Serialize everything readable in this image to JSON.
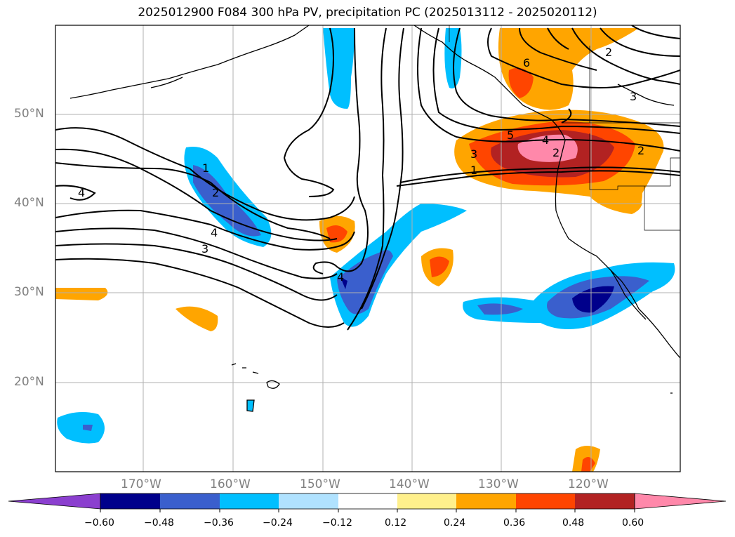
{
  "title": "2025012900 F084 300 hPa PV, precipitation PC (2025013112 - 2025020112)",
  "latitude_labels": [
    "50°N",
    "40°N",
    "30°N",
    "20°N"
  ],
  "longitude_labels": [
    "170°W",
    "160°W",
    "150°W",
    "140°W",
    "130°W",
    "120°W"
  ],
  "colorbar": {
    "colors": [
      "#8b3fcf",
      "#00008b",
      "#3a5fcd",
      "#00bfff",
      "#b0e2ff",
      "#ffffff",
      "#fff08c",
      "#ffa500",
      "#ff4500",
      "#b22222",
      "#ff88aa"
    ],
    "tick_labels": [
      "−0.60",
      "−0.48",
      "−0.36",
      "−0.24",
      "−0.12",
      "0.12",
      "0.24",
      "0.36",
      "0.48",
      "0.60"
    ]
  },
  "contour_labels": [
    {
      "text": "1"
    },
    {
      "text": "2"
    },
    {
      "text": "3"
    },
    {
      "text": "4"
    },
    {
      "text": "4"
    },
    {
      "text": "4"
    },
    {
      "text": "1"
    },
    {
      "text": "3"
    },
    {
      "text": "5"
    },
    {
      "text": "4"
    },
    {
      "text": "2"
    },
    {
      "text": "6"
    },
    {
      "text": "2"
    },
    {
      "text": "3"
    },
    {
      "text": "2"
    }
  ]
}
